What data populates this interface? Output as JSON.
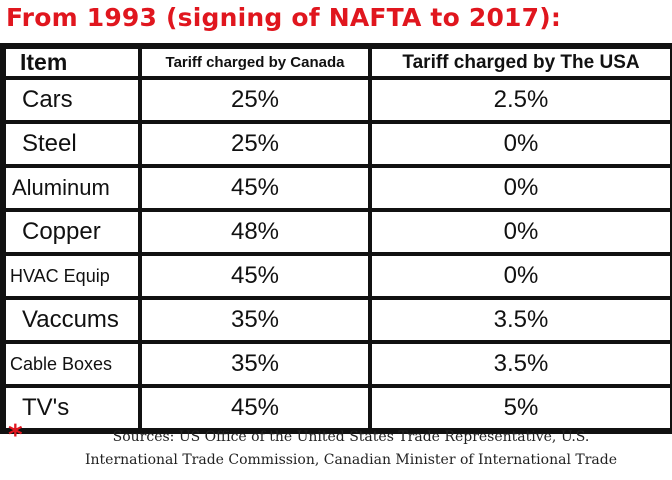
{
  "title": "From 1993 (signing of NAFTA to 2017):",
  "table": {
    "headers": {
      "item": "Item",
      "canada": "Tariff charged by Canada",
      "usa": "Tariff charged by The USA"
    },
    "rows": [
      {
        "item": "Cars",
        "canada": "25%",
        "usa": "2.5%"
      },
      {
        "item": "Steel",
        "canada": "25%",
        "usa": "0%"
      },
      {
        "item": "Aluminum",
        "canada": "45%",
        "usa": "0%"
      },
      {
        "item": "Copper",
        "canada": "48%",
        "usa": "0%"
      },
      {
        "item": "HVAC Equip",
        "canada": "45%",
        "usa": "0%"
      },
      {
        "item": "Vaccums",
        "canada": "35%",
        "usa": "3.5%"
      },
      {
        "item": "Cable Boxes",
        "canada": "35%",
        "usa": "3.5%"
      },
      {
        "item": "TV's",
        "canada": "45%",
        "usa": "5%"
      }
    ]
  },
  "footer": {
    "marker": "*",
    "line1": "Sources: US Office of the United States Trade Representative, U.S.",
    "line2": "International Trade Commission, Canadian Minister of International Trade"
  },
  "colors": {
    "title": "#e0161e",
    "border": "#111111",
    "text": "#111111"
  }
}
